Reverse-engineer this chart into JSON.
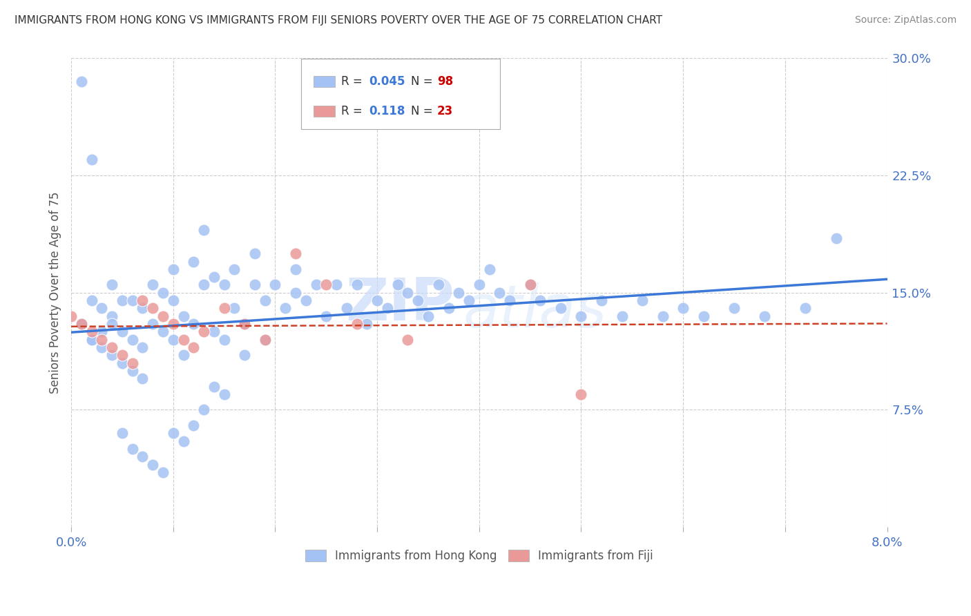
{
  "title": "IMMIGRANTS FROM HONG KONG VS IMMIGRANTS FROM FIJI SENIORS POVERTY OVER THE AGE OF 75 CORRELATION CHART",
  "source": "Source: ZipAtlas.com",
  "ylabel": "Seniors Poverty Over the Age of 75",
  "x_range": [
    0.0,
    0.08
  ],
  "y_range": [
    0.0,
    0.3
  ],
  "y_ticks": [
    0.075,
    0.15,
    0.225,
    0.3
  ],
  "x_ticks": [
    0.0,
    0.01,
    0.02,
    0.03,
    0.04,
    0.05,
    0.06,
    0.07,
    0.08
  ],
  "x_label_ticks": [
    0.0,
    0.08
  ],
  "legend_r_hk": "0.045",
  "legend_n_hk": "98",
  "legend_r_fiji": "0.118",
  "legend_n_fiji": "23",
  "hk_color": "#a4c2f4",
  "fiji_color": "#ea9999",
  "hk_line_color": "#3c78d8",
  "fiji_line_color": "#cc4125",
  "watermark_zip": "ZIP",
  "watermark_atlas": "atlas",
  "hk_x": [
    0.001,
    0.002,
    0.002,
    0.003,
    0.003,
    0.004,
    0.004,
    0.004,
    0.005,
    0.005,
    0.005,
    0.006,
    0.006,
    0.006,
    0.007,
    0.007,
    0.007,
    0.008,
    0.008,
    0.009,
    0.009,
    0.01,
    0.01,
    0.01,
    0.011,
    0.011,
    0.012,
    0.012,
    0.013,
    0.013,
    0.014,
    0.014,
    0.015,
    0.015,
    0.016,
    0.016,
    0.017,
    0.017,
    0.018,
    0.018,
    0.019,
    0.019,
    0.02,
    0.021,
    0.022,
    0.022,
    0.023,
    0.024,
    0.025,
    0.026,
    0.027,
    0.028,
    0.029,
    0.03,
    0.031,
    0.032,
    0.033,
    0.034,
    0.035,
    0.036,
    0.037,
    0.038,
    0.039,
    0.04,
    0.041,
    0.042,
    0.043,
    0.045,
    0.046,
    0.048,
    0.05,
    0.052,
    0.054,
    0.056,
    0.058,
    0.06,
    0.062,
    0.065,
    0.068,
    0.072,
    0.001,
    0.001,
    0.002,
    0.002,
    0.003,
    0.004,
    0.005,
    0.006,
    0.007,
    0.008,
    0.009,
    0.01,
    0.011,
    0.012,
    0.013,
    0.014,
    0.015,
    0.075
  ],
  "hk_y": [
    0.13,
    0.12,
    0.145,
    0.115,
    0.14,
    0.11,
    0.135,
    0.155,
    0.105,
    0.125,
    0.145,
    0.1,
    0.12,
    0.145,
    0.095,
    0.115,
    0.14,
    0.13,
    0.155,
    0.125,
    0.15,
    0.12,
    0.145,
    0.165,
    0.11,
    0.135,
    0.17,
    0.13,
    0.155,
    0.19,
    0.125,
    0.16,
    0.12,
    0.155,
    0.14,
    0.165,
    0.11,
    0.13,
    0.155,
    0.175,
    0.12,
    0.145,
    0.155,
    0.14,
    0.15,
    0.165,
    0.145,
    0.155,
    0.135,
    0.155,
    0.14,
    0.155,
    0.13,
    0.145,
    0.14,
    0.155,
    0.15,
    0.145,
    0.135,
    0.155,
    0.14,
    0.15,
    0.145,
    0.155,
    0.165,
    0.15,
    0.145,
    0.155,
    0.145,
    0.14,
    0.135,
    0.145,
    0.135,
    0.145,
    0.135,
    0.14,
    0.135,
    0.14,
    0.135,
    0.14,
    0.285,
    0.13,
    0.235,
    0.12,
    0.125,
    0.13,
    0.06,
    0.05,
    0.045,
    0.04,
    0.035,
    0.06,
    0.055,
    0.065,
    0.075,
    0.09,
    0.085,
    0.185
  ],
  "fiji_x": [
    0.0,
    0.001,
    0.002,
    0.003,
    0.004,
    0.005,
    0.006,
    0.007,
    0.008,
    0.009,
    0.01,
    0.011,
    0.012,
    0.013,
    0.015,
    0.017,
    0.019,
    0.022,
    0.025,
    0.028,
    0.033,
    0.045,
    0.05
  ],
  "fiji_y": [
    0.135,
    0.13,
    0.125,
    0.12,
    0.115,
    0.11,
    0.105,
    0.145,
    0.14,
    0.135,
    0.13,
    0.12,
    0.115,
    0.125,
    0.14,
    0.13,
    0.12,
    0.175,
    0.155,
    0.13,
    0.12,
    0.155,
    0.085
  ]
}
